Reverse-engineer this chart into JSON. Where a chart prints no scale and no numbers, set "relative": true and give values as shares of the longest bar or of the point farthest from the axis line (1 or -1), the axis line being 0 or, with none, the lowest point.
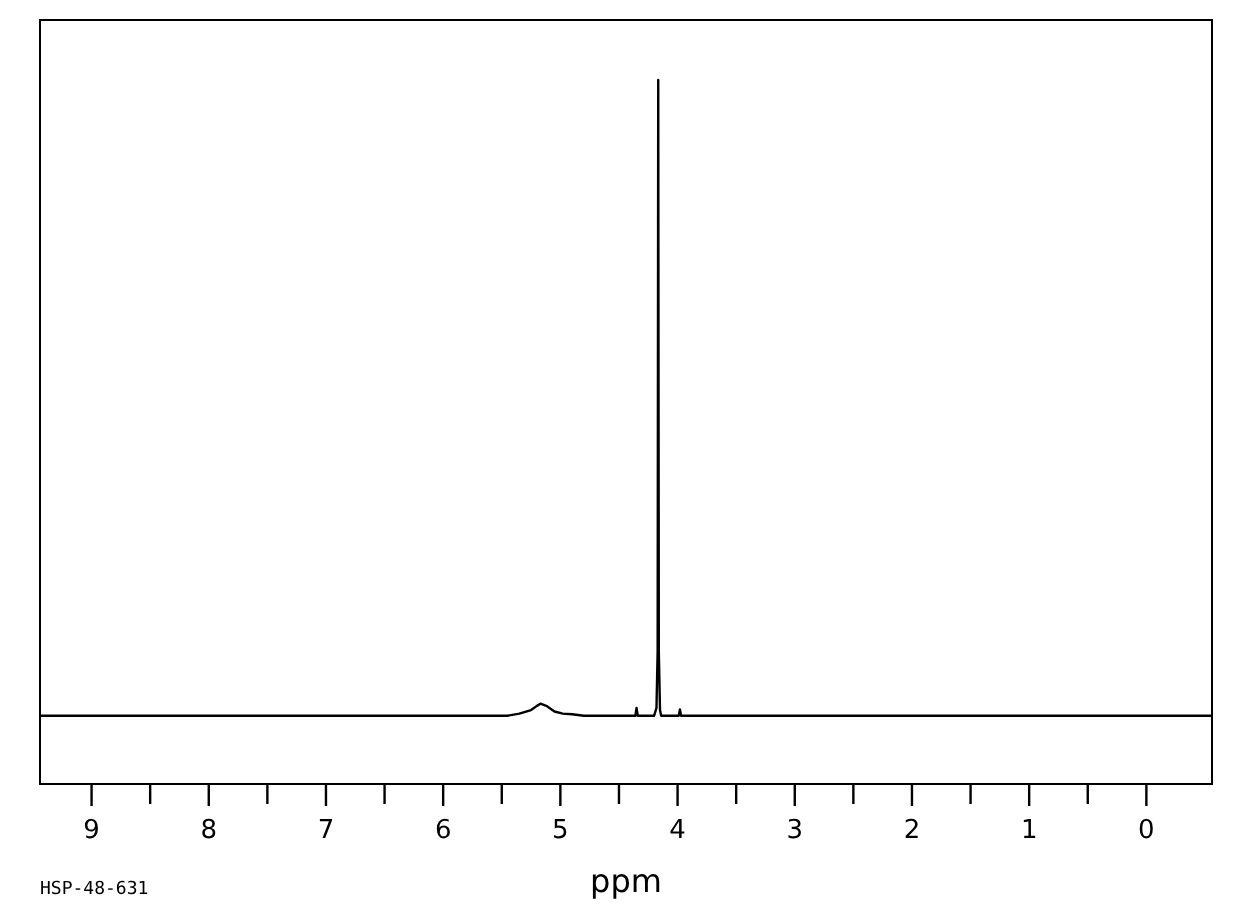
{
  "chart_data": {
    "type": "line",
    "relative": true,
    "xlabel": "ppm",
    "annotations": [
      "HSP-48-631"
    ],
    "xlim": [
      9.44,
      -0.56
    ],
    "xticks": [
      9,
      {
        "value": 8.5,
        "label": null
      },
      8,
      {
        "value": 7.5,
        "label": null
      },
      7,
      {
        "value": 6.5,
        "label": null
      },
      6,
      {
        "value": 5.5,
        "label": null
      },
      5,
      {
        "value": 4.5,
        "label": null
      },
      4,
      {
        "value": 3.5,
        "label": null
      },
      3,
      {
        "value": 2.5,
        "label": null
      },
      2,
      {
        "value": 1.5,
        "label": null
      },
      1,
      {
        "value": 0.5,
        "label": null
      },
      0
    ],
    "tick_labels": "x",
    "grid": false,
    "line_style": "solid",
    "series": [
      {
        "color": "#000000",
        "x": [
          9.44,
          5.45,
          5.35,
          5.25,
          5.2,
          5.17,
          5.12,
          5.05,
          4.98,
          4.9,
          4.8,
          4.36,
          4.35,
          4.34,
          4.2,
          4.18,
          4.17,
          4.165,
          4.16,
          4.15,
          4.14,
          3.99,
          3.98,
          3.97,
          -0.56
        ],
        "values": [
          0.097,
          0.097,
          0.1,
          0.105,
          0.111,
          0.114,
          0.111,
          0.103,
          0.1,
          0.099,
          0.097,
          0.097,
          0.108,
          0.097,
          0.097,
          0.108,
          0.188,
          1,
          0.188,
          0.105,
          0.097,
          0.097,
          0.106,
          0.097,
          0.097
        ]
      }
    ]
  }
}
